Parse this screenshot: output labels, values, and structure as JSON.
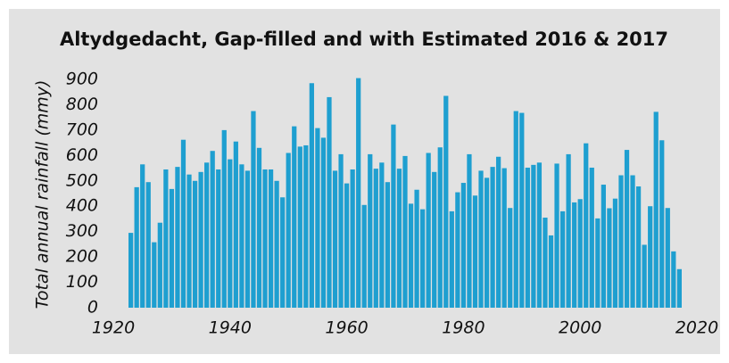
{
  "chart_data": {
    "type": "bar",
    "title": "Altydgedacht, Gap-filled and with Estimated 2016 & 2017",
    "y_label": "Total annual rainfall (mmy)",
    "color": "#1e9fd0",
    "x": [
      1923,
      1924,
      1925,
      1926,
      1927,
      1928,
      1929,
      1930,
      1931,
      1932,
      1933,
      1934,
      1935,
      1936,
      1937,
      1938,
      1939,
      1940,
      1941,
      1942,
      1943,
      1944,
      1945,
      1946,
      1947,
      1948,
      1949,
      1950,
      1951,
      1952,
      1953,
      1954,
      1955,
      1956,
      1957,
      1958,
      1959,
      1960,
      1961,
      1962,
      1963,
      1964,
      1965,
      1966,
      1967,
      1968,
      1969,
      1970,
      1971,
      1972,
      1973,
      1974,
      1975,
      1976,
      1977,
      1978,
      1979,
      1980,
      1981,
      1982,
      1983,
      1984,
      1985,
      1986,
      1987,
      1988,
      1989,
      1990,
      1991,
      1992,
      1993,
      1994,
      1995,
      1996,
      1997,
      1998,
      1999,
      2000,
      2001,
      2002,
      2003,
      2004,
      2005,
      2006,
      2007,
      2008,
      2009,
      2010,
      2011,
      2012,
      2013,
      2014,
      2015,
      2016,
      2017
    ],
    "values": [
      295,
      475,
      565,
      495,
      258,
      335,
      545,
      468,
      555,
      662,
      525,
      500,
      535,
      572,
      618,
      545,
      700,
      585,
      655,
      565,
      540,
      775,
      630,
      545,
      545,
      500,
      435,
      610,
      715,
      635,
      640,
      885,
      708,
      670,
      830,
      540,
      605,
      490,
      545,
      905,
      405,
      605,
      548,
      572,
      495,
      722,
      548,
      598,
      410,
      465,
      388,
      610,
      535,
      632,
      835,
      380,
      455,
      492,
      605,
      442,
      540,
      512,
      555,
      595,
      550,
      393,
      775,
      768,
      552,
      563,
      572,
      355,
      285,
      568,
      380,
      605,
      415,
      428,
      648,
      552,
      352,
      485,
      392,
      430,
      522,
      622,
      522,
      478,
      248,
      400,
      772,
      660,
      393,
      222,
      152
    ],
    "xlim": [
      1920,
      2020
    ],
    "xticks": [
      1920,
      1940,
      1960,
      1980,
      2000,
      2020
    ],
    "ylim": [
      0,
      900
    ],
    "yticks": [
      0,
      100,
      200,
      300,
      400,
      500,
      600,
      700,
      800,
      900
    ],
    "grid": false
  }
}
